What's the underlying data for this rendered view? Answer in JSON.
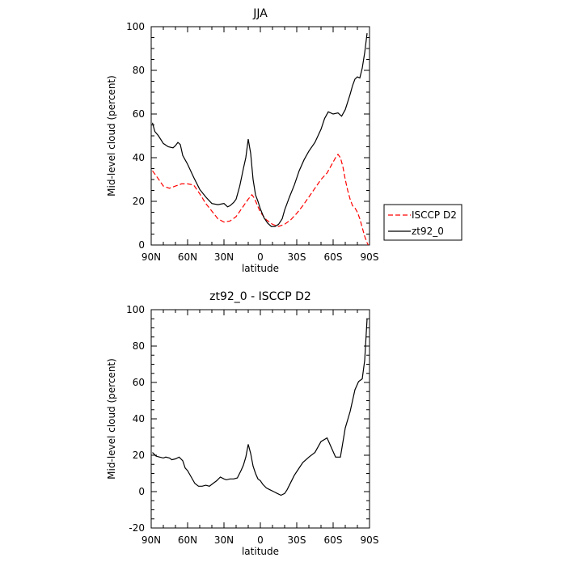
{
  "chart_data": [
    {
      "type": "line",
      "title": "JJA",
      "xlabel": "latitude",
      "ylabel": "Mid-level cloud (percent)",
      "xlim": [
        90,
        -90
      ],
      "ylim": [
        0,
        100
      ],
      "xticks": [
        90,
        60,
        30,
        0,
        -30,
        -60,
        -90
      ],
      "xtick_labels": [
        "90N",
        "60N",
        "30N",
        "0",
        "30S",
        "60S",
        "90S"
      ],
      "yticks": [
        0,
        20,
        40,
        60,
        80,
        100
      ],
      "legend_position": "right",
      "series": [
        {
          "name": "ISCCP D2",
          "color": "#ff0000",
          "dash": "dashed",
          "x": [
            89,
            85,
            80,
            75,
            70,
            65,
            60,
            55,
            50,
            45,
            40,
            35,
            30,
            25,
            20,
            15,
            10,
            7,
            5,
            0,
            -5,
            -10,
            -15,
            -20,
            -25,
            -30,
            -35,
            -40,
            -45,
            -50,
            -55,
            -60,
            -62,
            -64,
            -66,
            -68,
            -70,
            -72,
            -74,
            -76,
            -78,
            -80,
            -82,
            -84,
            -86,
            -88,
            -89
          ],
          "y": [
            34,
            31,
            27,
            26,
            27,
            28,
            28,
            27.5,
            23.5,
            19,
            15.5,
            12,
            10.5,
            11,
            13,
            17,
            21,
            23,
            21.5,
            15,
            11.5,
            9.5,
            8.5,
            9.5,
            11.5,
            14.5,
            18,
            22,
            26,
            30,
            33,
            38,
            40,
            41.5,
            40,
            36,
            30,
            25,
            21,
            18,
            17,
            15,
            12,
            8,
            4,
            1,
            0
          ]
        },
        {
          "name": "zt92_0",
          "color": "#000000",
          "dash": "solid",
          "x": [
            89,
            87,
            84,
            80,
            76,
            72,
            70,
            68,
            66,
            64,
            62,
            60,
            55,
            50,
            45,
            40,
            35,
            30,
            27,
            25,
            22,
            20,
            17,
            14,
            12,
            10,
            8,
            6,
            4,
            2,
            0,
            -3,
            -6,
            -9,
            -12,
            -15,
            -18,
            -20,
            -24,
            -28,
            -32,
            -36,
            -40,
            -45,
            -50,
            -53,
            -56,
            -60,
            -64,
            -67,
            -70,
            -74,
            -76,
            -78,
            -80,
            -82,
            -84,
            -86,
            -88
          ],
          "y": [
            56,
            52,
            50,
            46.5,
            45,
            44.5,
            45.5,
            47,
            46,
            41,
            39,
            37,
            31,
            25.5,
            22,
            19,
            18.5,
            19,
            17.5,
            18,
            19.5,
            21,
            27,
            35,
            40,
            48.5,
            42,
            30,
            23,
            20,
            16.5,
            12.5,
            10,
            8.5,
            8.5,
            9.5,
            12,
            16,
            22,
            27.5,
            34,
            39,
            43,
            47,
            53,
            58,
            61,
            60,
            60.5,
            59,
            62,
            69,
            73,
            76,
            77,
            76.5,
            81,
            88,
            97
          ]
        }
      ]
    },
    {
      "type": "line",
      "title": "zt92_0 - ISCCP D2",
      "xlabel": "latitude",
      "ylabel": "Mid-level cloud (percent)",
      "xlim": [
        90,
        -90
      ],
      "ylim": [
        -20,
        100
      ],
      "xticks": [
        90,
        60,
        30,
        0,
        -30,
        -60,
        -90
      ],
      "xtick_labels": [
        "90N",
        "60N",
        "30N",
        "0",
        "30S",
        "60S",
        "90S"
      ],
      "yticks": [
        -20,
        0,
        20,
        40,
        60,
        80,
        100
      ],
      "series": [
        {
          "color": "#000000",
          "dash": "solid",
          "x": [
            89,
            86,
            83,
            80,
            78,
            75,
            73,
            70,
            67,
            64,
            62,
            60,
            57,
            54,
            51,
            48,
            45,
            42,
            39,
            36,
            33,
            30,
            28,
            25,
            22,
            19,
            16,
            14,
            12,
            10,
            8,
            6,
            4,
            2,
            0,
            -2,
            -5,
            -8,
            -11,
            -14,
            -17,
            -20,
            -22,
            -25,
            -28,
            -31,
            -35,
            -40,
            -45,
            -50,
            -55,
            -58,
            -62,
            -66,
            -70,
            -74,
            -78,
            -81,
            -84,
            -86,
            -88
          ],
          "y": [
            21.5,
            19.5,
            19,
            18.5,
            19,
            18.5,
            17.5,
            18,
            19,
            17,
            13,
            11.5,
            8,
            4.5,
            3,
            3,
            3.5,
            3,
            4.5,
            6,
            8,
            7,
            6.5,
            7,
            7,
            7.5,
            11.5,
            14.5,
            19,
            26,
            21,
            14,
            10,
            7,
            6,
            4,
            2,
            1,
            0,
            -1,
            -2,
            -1,
            1,
            5,
            9,
            12,
            16,
            19,
            21.5,
            27.5,
            29.5,
            25,
            19,
            19,
            35,
            44,
            56,
            60.5,
            62,
            72,
            95
          ]
        }
      ]
    }
  ]
}
